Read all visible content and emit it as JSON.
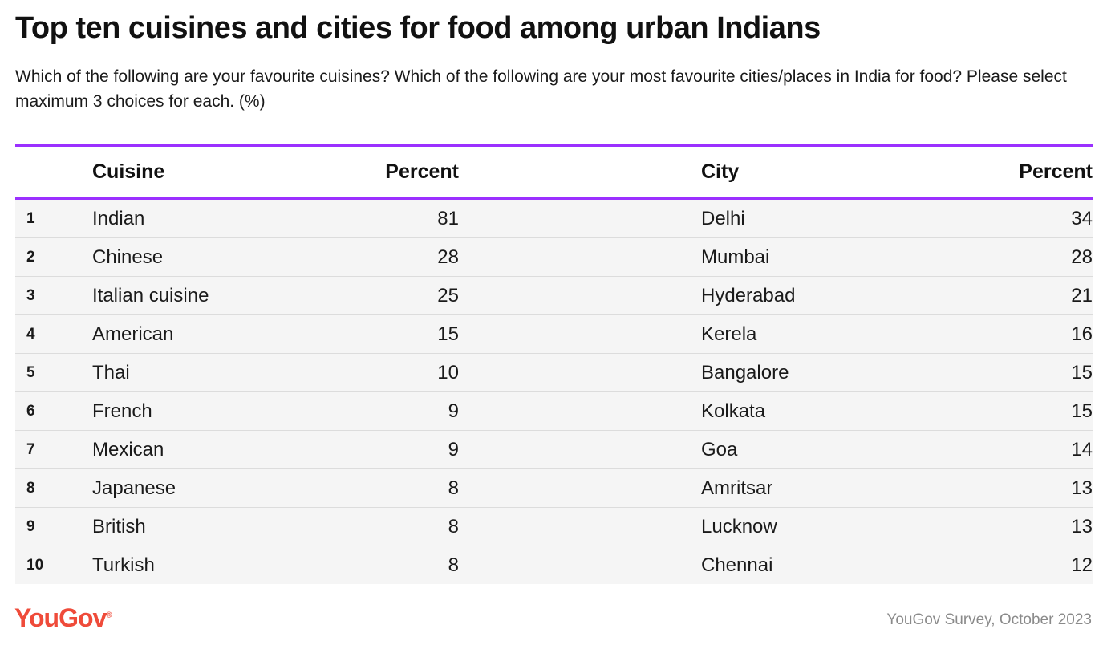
{
  "title": "Top ten cuisines and cities for food among urban Indians",
  "subtitle": "Which of the following are your favourite cuisines? Which of the following are your most favourite cities/places in India for food? Please select maximum 3 choices for each. (%)",
  "headers": {
    "rank": "",
    "cuisine": "Cuisine",
    "cuisine_percent": "Percent",
    "city": "City",
    "city_percent": "Percent"
  },
  "footer": {
    "logo": "YouGov",
    "source": "YouGov Survey, October 2023"
  },
  "colors": {
    "accent_rule": "#9b30ff",
    "logo": "#ef4b3a",
    "row_bg": "#f5f5f5",
    "source_text": "#8a8a8a"
  },
  "chart_data": {
    "type": "table",
    "title": "Top ten cuisines and cities for food among urban Indians",
    "columns": [
      "",
      "Cuisine",
      "Percent",
      "City",
      "Percent"
    ],
    "rows": [
      {
        "rank": "1",
        "cuisine": "Indian",
        "cuisine_percent": "81",
        "city": "Delhi",
        "city_percent": "34"
      },
      {
        "rank": "2",
        "cuisine": "Chinese",
        "cuisine_percent": "28",
        "city": "Mumbai",
        "city_percent": "28"
      },
      {
        "rank": "3",
        "cuisine": "Italian cuisine",
        "cuisine_percent": "25",
        "city": "Hyderabad",
        "city_percent": "21"
      },
      {
        "rank": "4",
        "cuisine": "American",
        "cuisine_percent": "15",
        "city": "Kerela",
        "city_percent": "16"
      },
      {
        "rank": "5",
        "cuisine": "Thai",
        "cuisine_percent": "10",
        "city": "Bangalore",
        "city_percent": "15"
      },
      {
        "rank": "6",
        "cuisine": "French",
        "cuisine_percent": "9",
        "city": "Kolkata",
        "city_percent": "15"
      },
      {
        "rank": "7",
        "cuisine": "Mexican",
        "cuisine_percent": "9",
        "city": "Goa",
        "city_percent": "14"
      },
      {
        "rank": "8",
        "cuisine": "Japanese",
        "cuisine_percent": "8",
        "city": "Amritsar",
        "city_percent": "13"
      },
      {
        "rank": "9",
        "cuisine": "British",
        "cuisine_percent": "8",
        "city": "Lucknow",
        "city_percent": "13"
      },
      {
        "rank": "10",
        "cuisine": "Turkish",
        "cuisine_percent": "8",
        "city": "Chennai",
        "city_percent": "12"
      }
    ]
  }
}
